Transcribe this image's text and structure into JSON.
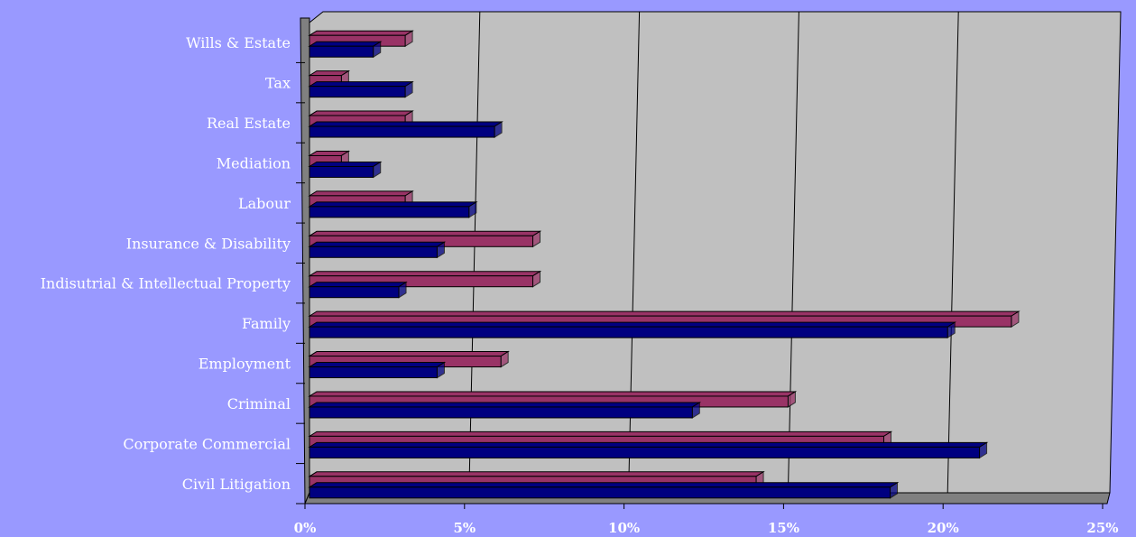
{
  "chart_data": {
    "type": "bar",
    "orientation": "horizontal",
    "style": "3d",
    "categories": [
      "Civil Litigation",
      "Corporate Commercial",
      "Criminal",
      "Employment",
      "Family",
      "Indisutrial & Intellectual Property",
      "Insurance & Disability",
      "Labour",
      "Mediation",
      "Real Estate",
      "Tax",
      "Wills & Estate"
    ],
    "series": [
      {
        "color": "#993366",
        "values": [
          14,
          18,
          15,
          6,
          22,
          7,
          7,
          3,
          1,
          3,
          1,
          3
        ]
      },
      {
        "color": "#000080",
        "values": [
          18.2,
          21,
          12,
          4,
          20,
          2.8,
          4,
          5,
          2,
          5.8,
          3,
          2
        ]
      }
    ],
    "x_ticks": [
      "0%",
      "5%",
      "10%",
      "15%",
      "20%",
      "25%"
    ],
    "xlim": [
      0,
      25
    ],
    "grid": true,
    "legend": "none",
    "colors": {
      "background": "#9999ff",
      "plot_wall": "#c0c0c0",
      "side_wall": "#808080",
      "gridline": "#000000"
    }
  }
}
